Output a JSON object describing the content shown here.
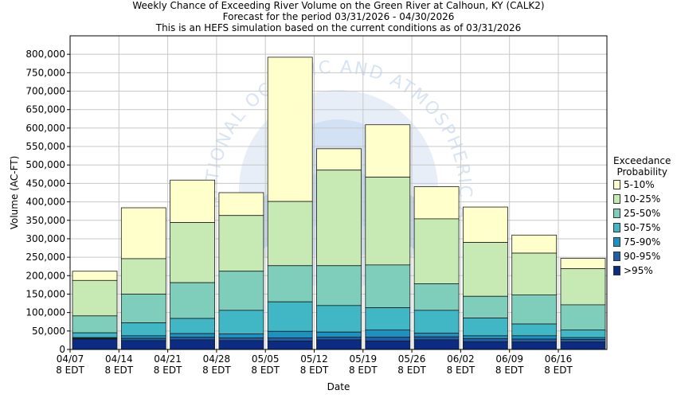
{
  "header": {
    "title": "Weekly Chance of Exceeding River Volume on the Green River at Calhoun, KY (CALK2)",
    "subtitle1": "Forecast for the period 03/31/2026 - 04/30/2026",
    "subtitle2": "This is an HEFS simulation based on the current conditions as of 03/31/2026"
  },
  "watermark": {
    "text": "NATIONAL OCEANIC AND ATMOSPHERIC ADMINISTRATION"
  },
  "legend": {
    "title_line1": "Exceedance",
    "title_line2": "Probability",
    "items": [
      {
        "label": "5-10%",
        "color": "#ffffcc"
      },
      {
        "label": "10-25%",
        "color": "#c7e9b4"
      },
      {
        "label": "25-50%",
        "color": "#7fcdbb"
      },
      {
        "label": "50-75%",
        "color": "#41b6c4"
      },
      {
        "label": "75-90%",
        "color": "#1d91c0"
      },
      {
        "label": "90-95%",
        "color": "#225ea8"
      },
      {
        "label": ">95%",
        "color": "#0c2c84"
      }
    ]
  },
  "chart_data": {
    "type": "bar",
    "stacked": true,
    "xlabel": "Date",
    "ylabel": "Volume (AC-FT)",
    "ylim": [
      0,
      850000
    ],
    "y_ticks": [
      "0",
      "50,000",
      "100,000",
      "150,000",
      "200,000",
      "250,000",
      "300,000",
      "350,000",
      "400,000",
      "450,000",
      "500,000",
      "550,000",
      "600,000",
      "650,000",
      "700,000",
      "750,000",
      "800,000"
    ],
    "x_tick_labels": [
      [
        "04/07",
        "8 EDT"
      ],
      [
        "04/14",
        "8 EDT"
      ],
      [
        "04/21",
        "8 EDT"
      ],
      [
        "04/28",
        "8 EDT"
      ],
      [
        "05/05",
        "8 EDT"
      ],
      [
        "05/12",
        "8 EDT"
      ],
      [
        "05/19",
        "8 EDT"
      ],
      [
        "05/26",
        "8 EDT"
      ],
      [
        "06/02",
        "8 EDT"
      ],
      [
        "06/09",
        "8 EDT"
      ],
      [
        "06/16",
        "8 EDT"
      ]
    ],
    "grid": true,
    "legend_position": "right",
    "series_labels": [
      "5-10%",
      "10-25%",
      "25-50%",
      "50-75%",
      "75-90%",
      "90-95%",
      ">95%"
    ],
    "bars": [
      {
        "x": "04/07",
        "levels": [
          212000,
          187000,
          91000,
          45000,
          32000,
          30000,
          28000
        ]
      },
      {
        "x": "04/14",
        "levels": [
          384000,
          246000,
          150000,
          72000,
          37000,
          30000,
          24000
        ]
      },
      {
        "x": "04/21",
        "levels": [
          459000,
          344000,
          181000,
          84000,
          43000,
          33000,
          26000
        ]
      },
      {
        "x": "04/28",
        "levels": [
          425000,
          363000,
          212000,
          106000,
          42000,
          31000,
          24000
        ]
      },
      {
        "x": "05/05",
        "levels": [
          792000,
          401000,
          227000,
          129000,
          49000,
          31000,
          23000
        ]
      },
      {
        "x": "05/12",
        "levels": [
          544000,
          486000,
          227000,
          119000,
          47000,
          33000,
          26000
        ]
      },
      {
        "x": "05/19",
        "levels": [
          609000,
          467000,
          229000,
          113000,
          53000,
          33000,
          23000
        ]
      },
      {
        "x": "05/26",
        "levels": [
          441000,
          354000,
          178000,
          106000,
          44000,
          34000,
          26000
        ]
      },
      {
        "x": "06/02",
        "levels": [
          386000,
          290000,
          144000,
          85000,
          37000,
          29000,
          21000
        ]
      },
      {
        "x": "06/09",
        "levels": [
          310000,
          261000,
          148000,
          69000,
          37000,
          28000,
          20000
        ]
      },
      {
        "x": "06/16",
        "levels": [
          247000,
          219000,
          121000,
          53000,
          32000,
          27000,
          20000
        ]
      }
    ]
  }
}
